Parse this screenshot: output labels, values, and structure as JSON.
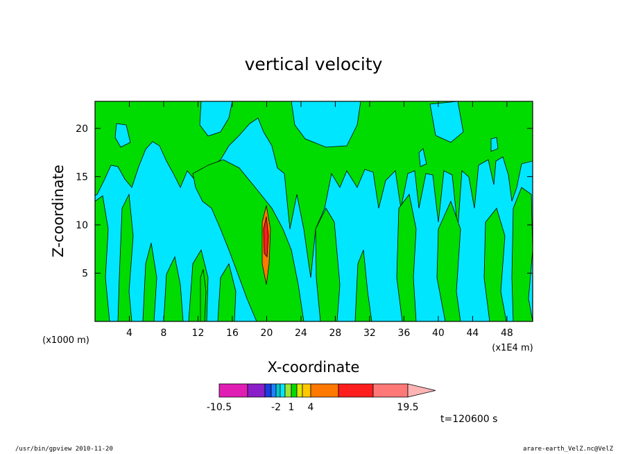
{
  "chart_data": {
    "type": "heatmap",
    "title": "vertical velocity",
    "xlabel": "X-coordinate",
    "ylabel": "Z-coordinate",
    "x_unit_label": "(x1E4 m)",
    "y_unit_label": "(x1000 m)",
    "xlim": [
      0,
      51
    ],
    "ylim": [
      0,
      22.8
    ],
    "x_ticks": [
      4,
      8,
      12,
      16,
      20,
      24,
      28,
      32,
      36,
      40,
      44,
      48
    ],
    "y_ticks": [
      5,
      10,
      15,
      20
    ],
    "colorbar": {
      "levels": [
        -10.5,
        -7.5,
        -4.5,
        -3,
        -2,
        -1,
        0,
        1,
        2,
        3,
        4,
        7.5,
        13.5,
        19.5
      ],
      "colors": [
        "#e01eb4",
        "#8a1ec8",
        "#1a3ce0",
        "#1e82ff",
        "#00c8c8",
        "#00e6ff",
        "#a0e632",
        "#00dc00",
        "#e6e600",
        "#ffc800",
        "#ff7800",
        "#ff1e1e",
        "#ff7878",
        "#ffb4b4"
      ],
      "tick_labels": [
        {
          "value": -10.5,
          "label": "-10.5"
        },
        {
          "value": -2,
          "label": "-2"
        },
        {
          "value": 1,
          "label": "1"
        },
        {
          "value": 4,
          "label": "4"
        },
        {
          "value": 19.5,
          "label": "19.5"
        }
      ]
    },
    "field_colors": {
      "negative": "#00e6ff",
      "positive": "#00dc00",
      "strong": "#ff7800"
    }
  },
  "annotation": {
    "time": "t=120600 s"
  },
  "footer": {
    "left": "/usr/bin/gpview   2010-11-20",
    "right": "arare-earth_VelZ.nc@VelZ"
  }
}
